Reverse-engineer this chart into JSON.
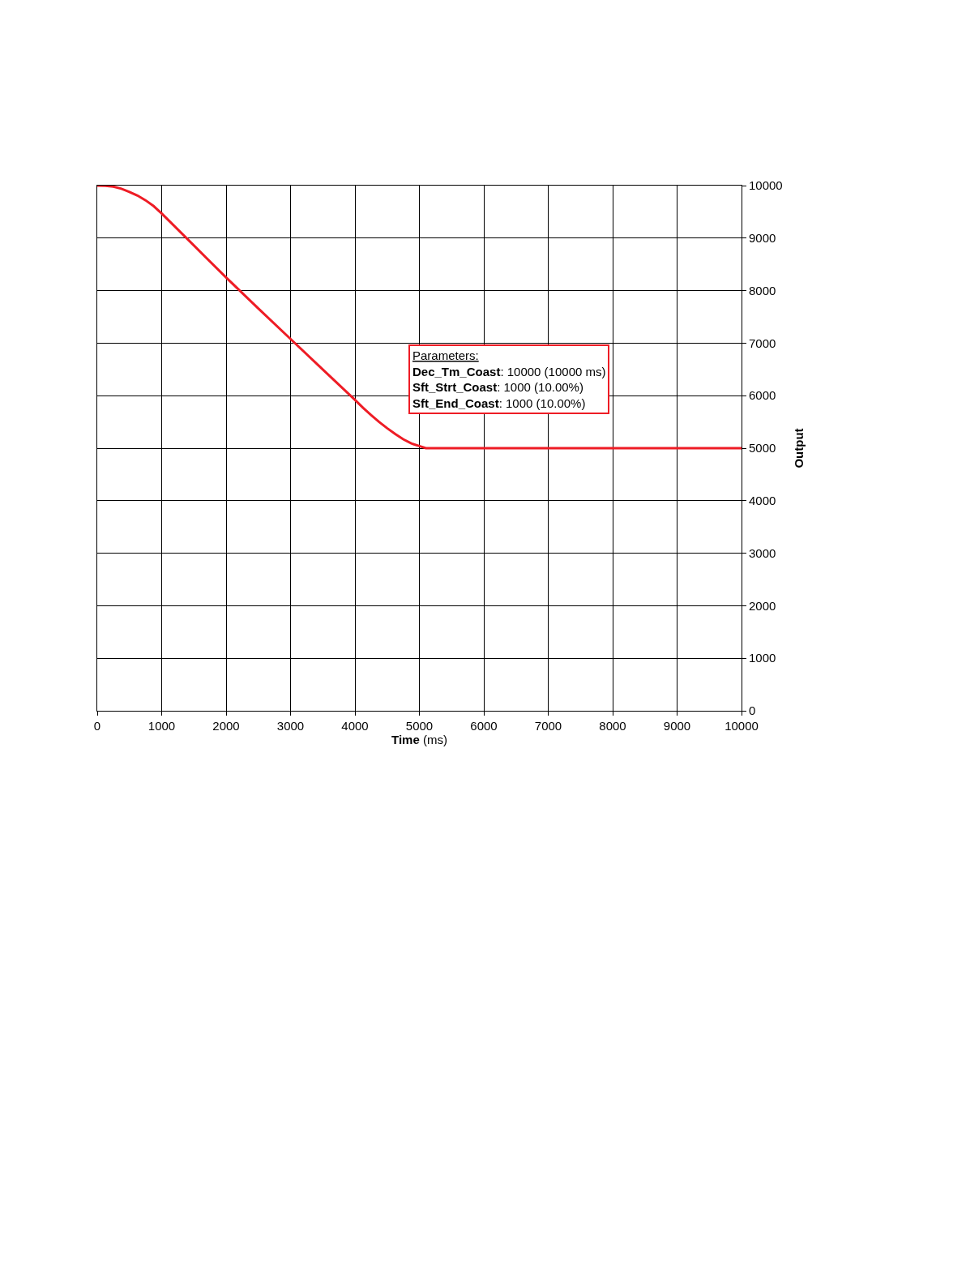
{
  "chart_data": {
    "type": "line",
    "xlabel": "Time (ms)",
    "ylabel": "Output",
    "x": [
      0,
      125,
      250,
      375,
      500,
      625,
      750,
      875,
      1000,
      1500,
      2000,
      2500,
      3000,
      3500,
      4000,
      4125,
      4250,
      4375,
      4500,
      4625,
      4750,
      4875,
      5000,
      5100,
      5500,
      6000,
      7000,
      8000,
      9000,
      10000
    ],
    "series": [
      {
        "color": "#ee1c25",
        "values": [
          10000,
          9995,
          9980,
          9940,
          9880,
          9810,
          9720,
          9610,
          9470,
          8860,
          8250,
          7660,
          7080,
          6500,
          5920,
          5770,
          5630,
          5500,
          5380,
          5270,
          5170,
          5090,
          5040,
          5000,
          5000,
          5000,
          5000,
          5000,
          5000,
          5000
        ]
      }
    ],
    "xlim": [
      0,
      10000
    ],
    "xticks": [
      0,
      1000,
      2000,
      3000,
      4000,
      5000,
      6000,
      7000,
      8000,
      9000,
      10000
    ],
    "ylim": [
      0,
      10000
    ],
    "yticks": [
      0,
      1000,
      2000,
      3000,
      4000,
      5000,
      6000,
      7000,
      8000,
      9000,
      10000
    ],
    "grid": true,
    "marker": "none",
    "line_style": "solid",
    "annotations": [
      "Parameters:",
      "Dec_Tm_Coast: 10000 (10000 ms)",
      "Sft_Strt_Coast: 1000 (10.00%)",
      "Sft_End_Coast: 1000 (10.00%)"
    ]
  }
}
